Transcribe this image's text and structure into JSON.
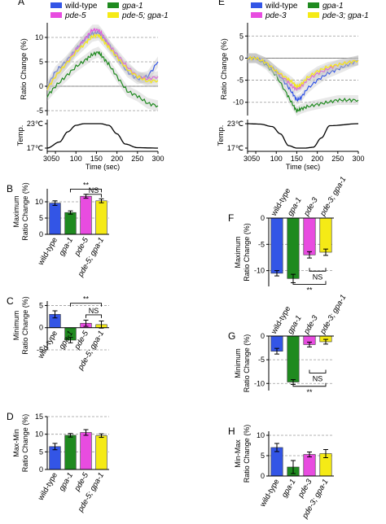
{
  "colors": {
    "wt": "#3355e6",
    "gpa1": "#1f8a1f",
    "pdeA": "#e84ce0",
    "pdeB": "#f5ea16",
    "temp": "#000000",
    "band": "#bcbcbc",
    "dash": "#9a9a9a"
  },
  "chart_data": [
    {
      "id": "A",
      "panel_label": "A",
      "type": "line",
      "legend": [
        "wild-type",
        "gpa-1",
        "pde-5",
        "pde-5; gpa-1"
      ],
      "legend_italic": [
        false,
        true,
        true,
        true
      ],
      "ylabel": "Ratio Change (%)",
      "yticks": [
        -5,
        0,
        5,
        10
      ],
      "ylim": [
        -6,
        13
      ],
      "dashed": [
        -5,
        0,
        5,
        10
      ],
      "xticks": [
        30,
        50,
        100,
        150,
        200,
        250,
        300
      ],
      "xlim": [
        30,
        300
      ],
      "xlabel": "Time  (sec)",
      "series": [
        {
          "key": "wt",
          "x": [
            30,
            50,
            75,
            100,
            125,
            140,
            155,
            165,
            180,
            200,
            225,
            250,
            275,
            300
          ],
          "y": [
            0,
            3,
            5,
            7.5,
            10,
            10.8,
            11,
            10.2,
            8.5,
            6,
            3,
            1.5,
            2,
            5
          ]
        },
        {
          "key": "gpa1",
          "x": [
            30,
            50,
            75,
            100,
            125,
            140,
            155,
            165,
            180,
            200,
            225,
            250,
            275,
            300
          ],
          "y": [
            -2,
            0,
            2,
            4,
            5.5,
            6.5,
            7,
            6,
            4.5,
            2,
            -1,
            -2,
            -3.5,
            -4
          ]
        },
        {
          "key": "pdeA",
          "x": [
            30,
            50,
            75,
            100,
            125,
            140,
            155,
            165,
            180,
            200,
            225,
            250,
            275,
            300
          ],
          "y": [
            -0.5,
            2,
            4.5,
            7.5,
            10,
            11.5,
            11.5,
            10.5,
            8.5,
            6.5,
            4,
            2,
            1.5,
            2
          ]
        },
        {
          "key": "pdeB",
          "x": [
            30,
            50,
            75,
            100,
            125,
            140,
            155,
            165,
            180,
            200,
            225,
            250,
            275,
            300
          ],
          "y": [
            -0.5,
            2,
            4.5,
            7,
            9,
            10.2,
            10.5,
            9.5,
            8,
            6,
            3.5,
            2,
            1,
            1.2
          ]
        }
      ],
      "temp_label": "Temp.",
      "temp_ticks": [
        "23℃",
        "17℃"
      ],
      "temp_trace": {
        "x": [
          30,
          60,
          80,
          100,
          120,
          140,
          160,
          180,
          200,
          220,
          250,
          300
        ],
        "t": [
          17,
          18.5,
          21,
          22.6,
          23,
          23,
          23,
          22.6,
          20.5,
          18,
          17.1,
          17
        ]
      }
    },
    {
      "id": "E",
      "panel_label": "E",
      "type": "line",
      "legend": [
        "wild-type",
        "gpa-1",
        "pde-3",
        "pde-3; gpa-1"
      ],
      "legend_italic": [
        false,
        true,
        true,
        true
      ],
      "ylabel": "Ratio Change (%)",
      "yticks": [
        -10,
        -5,
        0,
        5
      ],
      "ylim": [
        -13,
        8
      ],
      "dashed": [
        -10,
        -5,
        0,
        5
      ],
      "xticks": [
        30,
        50,
        100,
        150,
        200,
        250,
        300
      ],
      "xlim": [
        30,
        300
      ],
      "xlabel": "Time  (sec)",
      "series": [
        {
          "key": "wt",
          "x": [
            30,
            50,
            75,
            100,
            125,
            140,
            150,
            160,
            175,
            200,
            225,
            250,
            275,
            300
          ],
          "y": [
            0,
            0,
            -1,
            -3,
            -6,
            -8,
            -9.5,
            -9,
            -7,
            -5,
            -3.5,
            -2.5,
            -1.5,
            -0.5
          ]
        },
        {
          "key": "gpa1",
          "x": [
            30,
            50,
            75,
            100,
            125,
            140,
            150,
            160,
            175,
            200,
            225,
            250,
            275,
            300
          ],
          "y": [
            0,
            0,
            -1.5,
            -4,
            -8,
            -10.5,
            -12,
            -11.5,
            -11,
            -10.5,
            -10,
            -9.5,
            -9.5,
            -9.5
          ]
        },
        {
          "key": "pdeA",
          "x": [
            30,
            50,
            75,
            100,
            125,
            140,
            150,
            160,
            175,
            200,
            225,
            250,
            275,
            300
          ],
          "y": [
            0,
            0,
            -1,
            -3,
            -5,
            -6.5,
            -7,
            -6.5,
            -5,
            -3.5,
            -2.5,
            -1.5,
            -1,
            -0.5
          ]
        },
        {
          "key": "pdeB",
          "x": [
            30,
            50,
            75,
            100,
            125,
            140,
            150,
            160,
            175,
            200,
            225,
            250,
            275,
            300
          ],
          "y": [
            0,
            0,
            -1,
            -3,
            -4.5,
            -5.5,
            -6.5,
            -6,
            -4.5,
            -3,
            -2,
            -1.5,
            -1,
            -0.5
          ]
        }
      ],
      "temp_label": "Temp.",
      "temp_ticks": [
        "23℃",
        "17℃"
      ],
      "temp_trace": {
        "x": [
          30,
          60,
          90,
          110,
          130,
          150,
          170,
          190,
          210,
          230,
          300
        ],
        "t": [
          23,
          22.9,
          22.3,
          20.5,
          17.6,
          17,
          17,
          17.2,
          19.5,
          22.5,
          23
        ]
      }
    },
    {
      "id": "B",
      "panel_label": "B",
      "type": "bar",
      "ylabel": [
        "Maximum",
        "Ratio Change (%)"
      ],
      "categories": [
        "wild-type",
        "gpa-1",
        "pde-5",
        "pde-5; gpa-1"
      ],
      "cat_italic": [
        false,
        true,
        true,
        true
      ],
      "values": [
        9.6,
        6.7,
        11.7,
        10.3
      ],
      "errors": [
        0.7,
        0.5,
        0.6,
        0.6
      ],
      "ylim": [
        0,
        14
      ],
      "yticks": [
        0,
        5,
        10
      ],
      "dashed": [
        5,
        10
      ],
      "sig": [
        {
          "from": 1,
          "to": 3,
          "label": "**",
          "level": 13.9
        },
        {
          "from": 2,
          "to": 3,
          "label": "NS",
          "level": 12.3
        }
      ]
    },
    {
      "id": "C",
      "panel_label": "C",
      "type": "bar",
      "ylabel": [
        "Minimum",
        "Ratio Change (%)"
      ],
      "categories": [
        "wild-type",
        "gpa-1",
        "pde-5",
        "pde-5; gpa-1"
      ],
      "cat_italic": [
        false,
        true,
        true,
        true
      ],
      "values": [
        3.0,
        -2.8,
        1.0,
        0.7
      ],
      "errors": [
        0.8,
        0.6,
        0.7,
        0.8
      ],
      "ylim": [
        -5,
        6
      ],
      "yticks": [
        -5,
        0,
        5
      ],
      "dashed": [
        -5,
        5
      ],
      "sig": [
        {
          "from": 1,
          "to": 3,
          "label": "**",
          "level": 5.5
        },
        {
          "from": 2,
          "to": 3,
          "label": "NS",
          "level": 2.9
        }
      ]
    },
    {
      "id": "D",
      "panel_label": "D",
      "type": "bar",
      "ylabel": [
        "Max-Min",
        "Ratio Change (%)"
      ],
      "categories": [
        "wild-type",
        "gpa-1",
        "pde-5",
        "pde-5; gpa-1"
      ],
      "cat_italic": [
        false,
        true,
        true,
        true
      ],
      "values": [
        6.5,
        9.7,
        10.5,
        9.6
      ],
      "errors": [
        0.9,
        0.5,
        0.8,
        0.5
      ],
      "ylim": [
        0,
        15
      ],
      "yticks": [
        0,
        5,
        10,
        15
      ],
      "dashed": [
        5,
        10,
        15
      ],
      "sig": []
    },
    {
      "id": "F",
      "panel_label": "F",
      "type": "bar",
      "ylabel": [
        "Maximum",
        "Ratio Change (%)"
      ],
      "categories": [
        "wild-type",
        "gpa-1",
        "pde-3",
        "pde-3; gpa-1"
      ],
      "cat_italic": [
        false,
        true,
        true,
        true
      ],
      "values": [
        -10.5,
        -11.5,
        -7.0,
        -6.5
      ],
      "errors": [
        0.5,
        0.8,
        0.6,
        0.6
      ],
      "ylim": [
        -13,
        0
      ],
      "yticks": [
        -10,
        -5,
        0
      ],
      "dashed": [
        -5,
        -10
      ],
      "sig": [
        {
          "from": 2,
          "to": 3,
          "label": "NS",
          "level": -10.1
        },
        {
          "from": 1,
          "to": 3,
          "label": "**",
          "level": -12.6
        }
      ]
    },
    {
      "id": "G",
      "panel_label": "G",
      "type": "bar",
      "ylabel": [
        "Minimum",
        "Ratio Change (%)"
      ],
      "categories": [
        "wild-type",
        "gpa-1",
        "pde-3",
        "pde-3; gpa-1"
      ],
      "cat_italic": [
        false,
        true,
        true,
        true
      ],
      "values": [
        -3.2,
        -9.7,
        -1.8,
        -1.2
      ],
      "errors": [
        0.6,
        0.5,
        0.5,
        0.5
      ],
      "ylim": [
        -11.5,
        0
      ],
      "yticks": [
        -10,
        -5,
        0
      ],
      "dashed": [
        -5,
        -10
      ],
      "sig": [
        {
          "from": 2,
          "to": 3,
          "label": "NS",
          "level": -7.8
        },
        {
          "from": 1,
          "to": 3,
          "label": "**",
          "level": -10.6
        }
      ]
    },
    {
      "id": "H",
      "panel_label": "H",
      "type": "bar",
      "ylabel": [
        "Min-Max",
        "Ratio Change (%)"
      ],
      "categories": [
        "wild-type",
        "gpa-1",
        "pde-3",
        "pde-3; gpa-1"
      ],
      "cat_italic": [
        false,
        true,
        true,
        true
      ],
      "values": [
        7.0,
        2.2,
        5.3,
        5.5
      ],
      "errors": [
        1.0,
        1.6,
        0.6,
        1.0
      ],
      "ylim": [
        0,
        11
      ],
      "yticks": [
        0,
        5,
        10
      ],
      "dashed": [
        5,
        10
      ],
      "sig": []
    }
  ]
}
